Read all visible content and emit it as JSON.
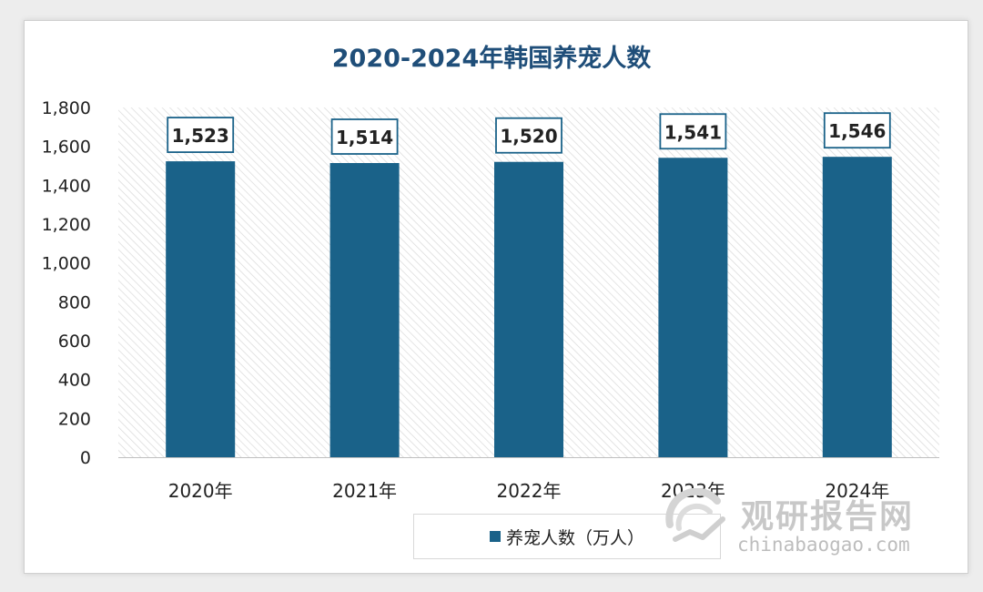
{
  "chart_data": {
    "type": "bar",
    "title": "2020-2024年韩国养宠人数",
    "categories": [
      "2020年",
      "2021年",
      "2022年",
      "2023年",
      "2024年"
    ],
    "series": [
      {
        "name": "养宠人数（万人）",
        "values": [
          1523,
          1514,
          1520,
          1541,
          1546
        ]
      }
    ],
    "data_labels": [
      "1,523",
      "1,514",
      "1,520",
      "1,541",
      "1,546"
    ],
    "ylim": [
      0,
      1800
    ],
    "yticks": [
      0,
      200,
      400,
      600,
      800,
      1000,
      1200,
      1400,
      1600,
      1800
    ],
    "ytick_labels": [
      "0",
      "200",
      "400",
      "600",
      "800",
      "1,000",
      "1,200",
      "1,400",
      "1,600",
      "1,800"
    ],
    "xlabel": "",
    "ylabel": "",
    "legend_position": "bottom",
    "grid": false
  },
  "colors": {
    "bar": "#1a6289",
    "title": "#1f4e79",
    "hatch": "#d9d9d9"
  },
  "legend": {
    "label": "养宠人数（万人）"
  },
  "watermark": {
    "name": "观研报告网",
    "url": "chinabaogao.com",
    "icon": "watermark-logo-icon"
  }
}
